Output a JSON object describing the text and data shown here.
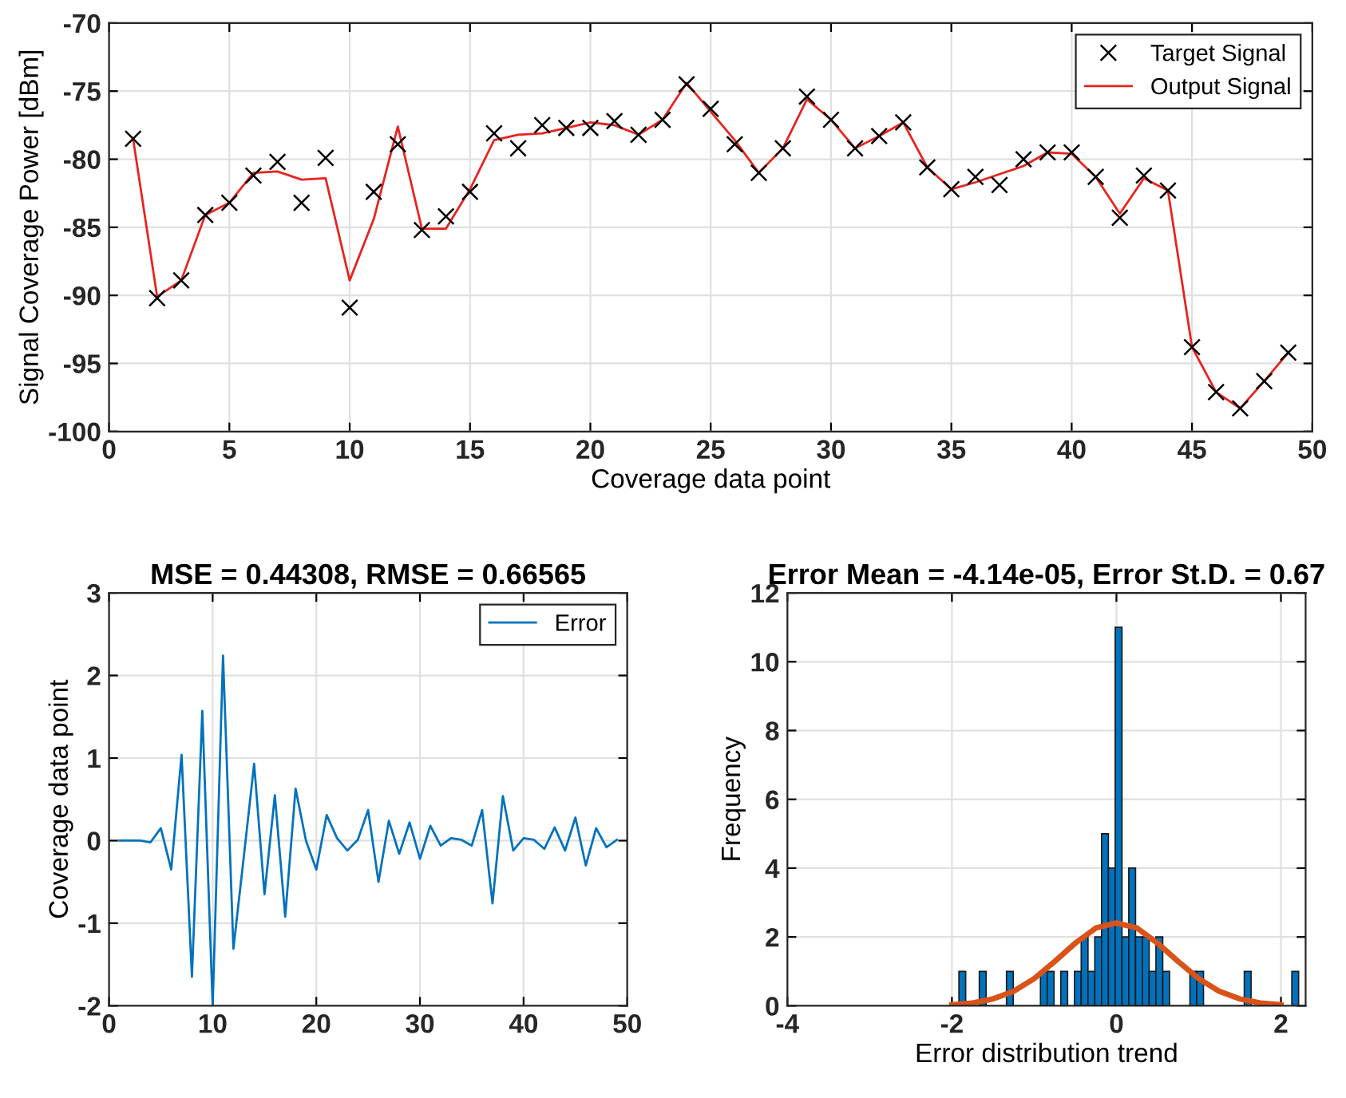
{
  "chart_data": [
    {
      "type": "line",
      "xlabel": "Coverage data point",
      "ylabel": "Signal Coverage Power [dBm]",
      "x": [
        1,
        2,
        3,
        4,
        5,
        6,
        7,
        8,
        9,
        10,
        11,
        12,
        13,
        14,
        15,
        16,
        17,
        18,
        19,
        20,
        21,
        22,
        23,
        24,
        25,
        26,
        27,
        28,
        29,
        30,
        31,
        32,
        33,
        34,
        35,
        36,
        37,
        38,
        39,
        40,
        41,
        42,
        43,
        44,
        45,
        46,
        47,
        48,
        49
      ],
      "xlim": [
        0,
        50
      ],
      "xticks": [
        0,
        5,
        10,
        15,
        20,
        25,
        30,
        35,
        40,
        45,
        50
      ],
      "ylim": [
        -100,
        -70
      ],
      "yticks": [
        -100,
        -95,
        -90,
        -85,
        -80,
        -75,
        -70
      ],
      "grid": true,
      "legend": "top right",
      "series": [
        {
          "name": "Target Signal",
          "type": "scatter",
          "marker": "cross",
          "color": "#000000",
          "values": [
            -78.5,
            -90.2,
            -88.9,
            -84.1,
            -83.2,
            -81.2,
            -80.2,
            -83.2,
            -79.9,
            -90.9,
            -82.4,
            -78.9,
            -85.2,
            -84.2,
            -82.4,
            -78.1,
            -79.2,
            -77.5,
            -77.7,
            -77.7,
            -77.2,
            -78.2,
            -77.1,
            -74.5,
            -76.3,
            -78.9,
            -81.0,
            -79.2,
            -75.4,
            -77.1,
            -79.2,
            -78.3,
            -77.3,
            -80.6,
            -82.2,
            -81.3,
            -81.9,
            -80.0,
            -79.5,
            -79.5,
            -81.3,
            -84.3,
            -81.2,
            -82.3,
            -93.8,
            -97.1,
            -98.3,
            -96.3,
            -94.2
          ]
        },
        {
          "name": "Output Signal",
          "type": "line",
          "color": "#e8231f",
          "values": [
            -78.5,
            -90.1,
            -88.9,
            -84.1,
            -83.2,
            -81.0,
            -80.9,
            -81.5,
            -81.4,
            -88.9,
            -84.4,
            -77.6,
            -85.1,
            -85.1,
            -82.2,
            -78.6,
            -78.2,
            -78.1,
            -77.7,
            -77.3,
            -77.5,
            -78.2,
            -77.1,
            -74.4,
            -76.5,
            -78.6,
            -81.0,
            -79.2,
            -75.6,
            -77.1,
            -79.2,
            -78.3,
            -77.3,
            -80.6,
            -82.2,
            -81.7,
            -81.1,
            -80.5,
            -79.5,
            -79.6,
            -81.3,
            -84.0,
            -81.4,
            -82.3,
            -93.8,
            -97.1,
            -98.3,
            -96.3,
            -94.2
          ]
        }
      ]
    },
    {
      "type": "line",
      "title": "MSE = 0.44308, RMSE = 0.66565",
      "ylabel": "Coverage data point",
      "x": [
        1,
        2,
        3,
        4,
        5,
        6,
        7,
        8,
        9,
        10,
        11,
        12,
        13,
        14,
        15,
        16,
        17,
        18,
        19,
        20,
        21,
        22,
        23,
        24,
        25,
        26,
        27,
        28,
        29,
        30,
        31,
        32,
        33,
        34,
        35,
        36,
        37,
        38,
        39,
        40,
        41,
        42,
        43,
        44,
        45,
        46,
        47,
        48,
        49
      ],
      "xlim": [
        0,
        50
      ],
      "xticks": [
        0,
        10,
        20,
        30,
        40,
        50
      ],
      "ylim": [
        -2,
        3
      ],
      "yticks": [
        -2,
        -1,
        0,
        1,
        2,
        3
      ],
      "grid": true,
      "legend": "top right",
      "series": [
        {
          "name": "Error",
          "color": "#0072bd",
          "values": [
            0,
            0,
            0,
            -0.02,
            0.15,
            -0.35,
            1.04,
            -1.65,
            1.57,
            -2.0,
            2.24,
            -1.31,
            -0.2,
            0.93,
            -0.65,
            0.55,
            -0.92,
            0.63,
            0.0,
            -0.35,
            0.31,
            0.03,
            -0.12,
            0.01,
            0.37,
            -0.5,
            0.24,
            -0.16,
            0.22,
            -0.22,
            0.18,
            -0.06,
            0.03,
            0.01,
            -0.06,
            0.37,
            -0.76,
            0.54,
            -0.12,
            0.03,
            0.01,
            -0.1,
            0.16,
            -0.12,
            0.28,
            -0.3,
            0.15,
            -0.08,
            0.01
          ]
        }
      ]
    },
    {
      "type": "histogram",
      "title": "Error Mean = -4.14e-05, Error St.D. = 0.67",
      "xlabel": "Error distribution trend",
      "ylabel": "Frequency",
      "color": "#0072bd",
      "bins": [
        -1.915,
        -1.8324,
        -1.7498,
        -1.6672,
        -1.5846,
        -1.502,
        -1.4194,
        -1.3368,
        -1.2542,
        -1.1716,
        -1.089,
        -1.0064,
        -0.9238,
        -0.8412,
        -0.7586,
        -0.676,
        -0.5934,
        -0.5108,
        -0.4282,
        -0.3456,
        -0.263,
        -0.1804,
        -0.0978,
        -0.0152,
        0.0674,
        0.15,
        0.2326,
        0.3152,
        0.3978,
        0.4804,
        0.563,
        0.6456,
        0.7282,
        0.8108,
        0.8934,
        0.976,
        1.0586,
        1.1412,
        1.2238,
        1.3064,
        1.389,
        1.4716,
        1.5542,
        1.6368,
        1.7194,
        1.802,
        1.8846,
        1.9672,
        2.0498,
        2.1324,
        2.215
      ],
      "values": [
        1,
        0,
        0,
        1,
        0,
        0,
        0,
        1,
        0,
        0,
        0,
        0,
        1,
        1,
        0,
        1,
        0,
        1,
        2,
        1,
        2,
        5,
        4,
        11,
        2,
        4,
        2,
        2,
        1,
        2,
        1,
        0,
        0,
        0,
        1,
        1,
        0,
        0,
        0,
        0,
        0,
        0,
        1,
        0,
        0,
        0,
        0,
        0,
        0,
        1
      ],
      "xlim": [
        -4,
        2.3
      ],
      "xticks": [
        -4,
        -2,
        0,
        2
      ],
      "ylim": [
        0,
        12
      ],
      "yticks": [
        0,
        2,
        4,
        6,
        8,
        10,
        12
      ],
      "grid": true,
      "series": [
        {
          "type": "line",
          "color": "#d95319",
          "x": [
            -2,
            -1.75,
            -1.5,
            -1.25,
            -1,
            -0.75,
            -0.5,
            -0.25,
            0,
            0.25,
            0.5,
            0.75,
            1,
            1.25,
            1.5,
            1.75,
            2
          ],
          "values": [
            0.03,
            0.08,
            0.2,
            0.42,
            0.79,
            1.29,
            1.82,
            2.26,
            2.41,
            2.26,
            1.82,
            1.29,
            0.79,
            0.42,
            0.2,
            0.08,
            0.03
          ]
        }
      ]
    }
  ]
}
